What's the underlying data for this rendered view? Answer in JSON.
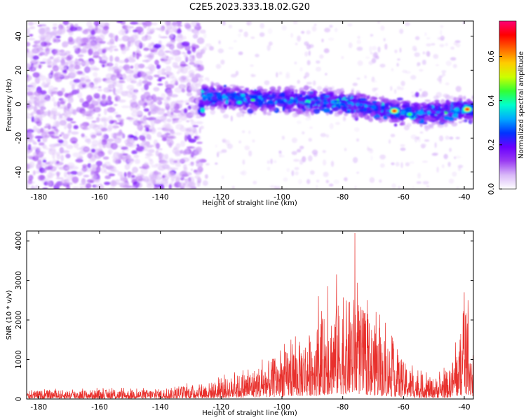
{
  "colors": {
    "snr_line": "#e8302c",
    "background": "#ffffff",
    "axis": "#000000",
    "colormap": [
      "#ffffff",
      "#d9b8f8",
      "#9a3cf2",
      "#6a00ff",
      "#0033ff",
      "#00aaff",
      "#00ffcc",
      "#33ff33",
      "#ccff00",
      "#ffcc00",
      "#ff6600",
      "#ff0000",
      "#ff0077"
    ]
  },
  "chart_data": [
    {
      "type": "heatmap",
      "title": "C2E5.2023.333.18.02.G20",
      "xlabel": "Height of straight line (km)",
      "ylabel": "Frequency (Hz)",
      "xlim": [
        -184,
        -37
      ],
      "ylim": [
        -50,
        49
      ],
      "x_ticks": [
        -180,
        -160,
        -140,
        -120,
        -100,
        -80,
        -60,
        -40
      ],
      "y_ticks": [
        -40,
        -20,
        0,
        20,
        40
      ],
      "x_tick_labels": [
        "-180",
        "-160",
        "-140",
        "-120",
        "-100",
        "-80",
        "-60",
        "-40"
      ],
      "y_tick_labels": [
        "-40",
        "-20",
        "0",
        "20",
        "40"
      ],
      "colorbar": {
        "label": "Normalized spectral amplitude",
        "range": [
          0.0,
          0.76
        ],
        "ticks": [
          0.0,
          0.2,
          0.4,
          0.6
        ],
        "tick_labels": [
          "0.0",
          "0.2",
          "0.4",
          "0.6"
        ]
      },
      "description_points": {
        "noise_region_x": [
          -184,
          -126
        ],
        "band_start_x": -126,
        "band_center_hz": [
          [
            -126,
            5
          ],
          [
            -110,
            3
          ],
          [
            -90,
            2
          ],
          [
            -80,
            1
          ],
          [
            -70,
            -2
          ],
          [
            -60,
            -5
          ],
          [
            -50,
            -5
          ],
          [
            -40,
            -3
          ],
          [
            -37,
            -3
          ]
        ],
        "peak_locations": [
          [
            -63,
            -4,
            0.7
          ],
          [
            -39,
            -3,
            0.7
          ],
          [
            -58,
            -6,
            0.45
          ],
          [
            -114,
            1,
            0.4
          ]
        ]
      }
    },
    {
      "type": "line",
      "title": "",
      "xlabel": "Height of straight line (km)",
      "ylabel": "SNR (10 * v/v)",
      "xlim": [
        -184,
        -37
      ],
      "ylim": [
        0,
        4250
      ],
      "x_ticks": [
        -180,
        -160,
        -140,
        -120,
        -100,
        -80,
        -60,
        -40
      ],
      "y_ticks": [
        0,
        1000,
        2000,
        3000,
        4000
      ],
      "x_tick_labels": [
        "-180",
        "-160",
        "-140",
        "-120",
        "-100",
        "-80",
        "-60",
        "-40"
      ],
      "y_tick_labels": [
        "0",
        "1000",
        "2000",
        "3000",
        "4000"
      ],
      "envelope": {
        "x": [
          -184,
          -170,
          -150,
          -140,
          -130,
          -120,
          -110,
          -100,
          -92,
          -86,
          -82,
          -78,
          -76,
          -72,
          -66,
          -60,
          -55,
          -50,
          -45,
          -41,
          -39,
          -37
        ],
        "y": [
          200,
          220,
          220,
          240,
          330,
          450,
          700,
          1100,
          1500,
          2000,
          2300,
          2400,
          2500,
          2000,
          1500,
          900,
          600,
          500,
          700,
          1600,
          2200,
          900
        ]
      },
      "peaks": {
        "x": [
          -76,
          -82,
          -88,
          -85,
          -72,
          -69,
          -40,
          -97
        ],
        "y": [
          4200,
          3150,
          2600,
          2850,
          2500,
          2200,
          2700,
          1500
        ]
      }
    }
  ]
}
